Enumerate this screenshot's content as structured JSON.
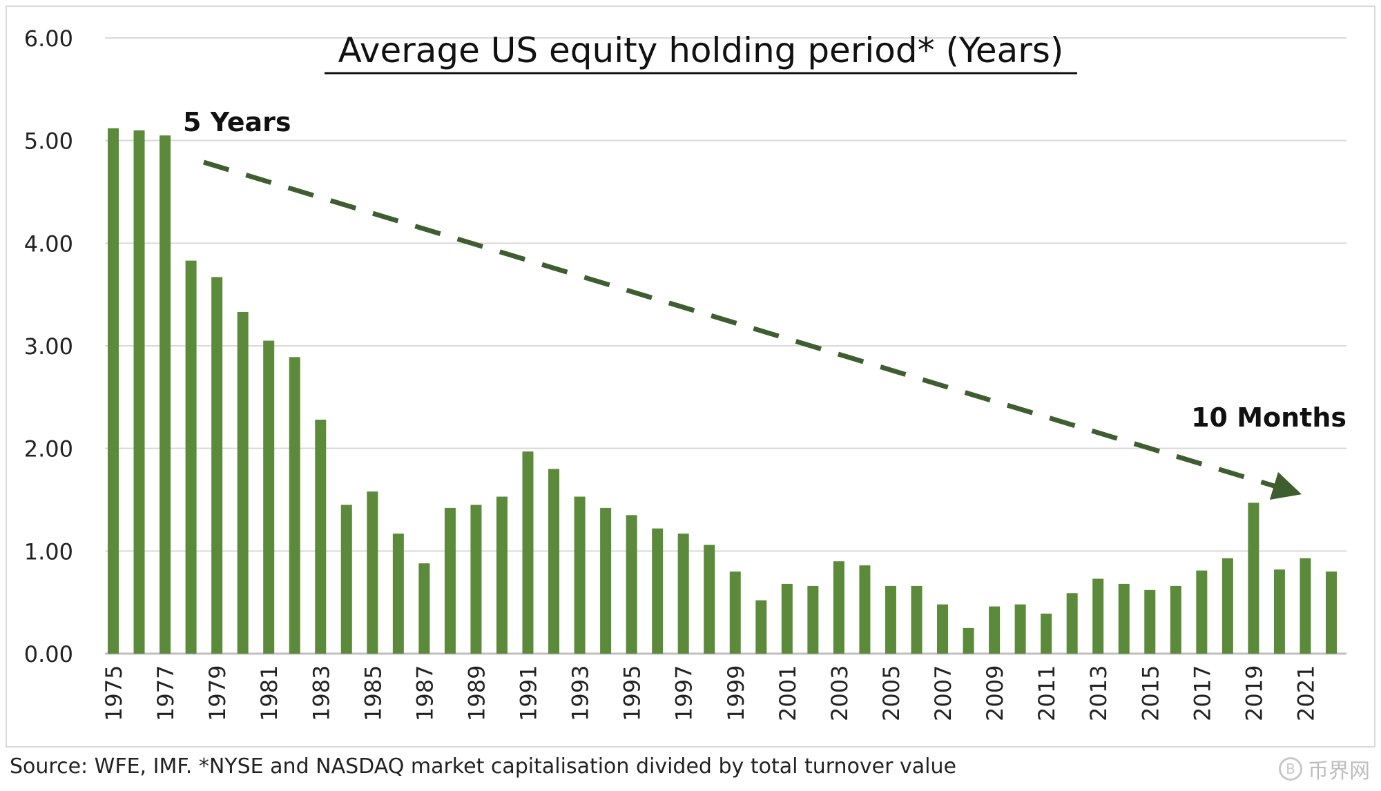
{
  "chart_data": {
    "type": "bar",
    "title": "Average US equity holding period* (Years)",
    "xlabel": "",
    "ylabel": "",
    "ylim": [
      0,
      6
    ],
    "y_ticks": [
      "0.00",
      "1.00",
      "2.00",
      "3.00",
      "4.00",
      "5.00",
      "6.00"
    ],
    "grid": true,
    "bar_color": "#5b8a3a",
    "trend_color": "#3e5e30",
    "categories": [
      "1975",
      "1976",
      "1977",
      "1978",
      "1979",
      "1980",
      "1981",
      "1982",
      "1983",
      "1984",
      "1985",
      "1986",
      "1987",
      "1988",
      "1989",
      "1990",
      "1991",
      "1992",
      "1993",
      "1994",
      "1995",
      "1996",
      "1997",
      "1998",
      "1999",
      "2000",
      "2001",
      "2002",
      "2003",
      "2004",
      "2005",
      "2006",
      "2007",
      "2008",
      "2009",
      "2010",
      "2011",
      "2012",
      "2013",
      "2014",
      "2015",
      "2016",
      "2017",
      "2018",
      "2019",
      "2020",
      "2021",
      "2022"
    ],
    "x_tick_labels": [
      "1975",
      "",
      "1977",
      "",
      "1979",
      "",
      "1981",
      "",
      "1983",
      "",
      "1985",
      "",
      "1987",
      "",
      "1989",
      "",
      "1991",
      "",
      "1993",
      "",
      "1995",
      "",
      "1997",
      "",
      "1999",
      "",
      "2001",
      "",
      "2003",
      "",
      "2005",
      "",
      "2007",
      "",
      "2009",
      "",
      "2011",
      "",
      "2013",
      "",
      "2015",
      "",
      "2017",
      "",
      "2019",
      "",
      "2021",
      ""
    ],
    "values": [
      5.12,
      5.1,
      5.05,
      3.83,
      3.67,
      3.33,
      3.05,
      2.89,
      2.28,
      1.45,
      1.58,
      1.17,
      0.88,
      1.42,
      1.45,
      1.53,
      1.97,
      1.8,
      1.53,
      1.42,
      1.35,
      1.22,
      1.17,
      1.06,
      0.8,
      0.52,
      0.68,
      0.66,
      0.9,
      0.86,
      0.66,
      0.66,
      0.48,
      0.25,
      0.46,
      0.48,
      0.39,
      0.59,
      0.73,
      0.68,
      0.62,
      0.66,
      0.81,
      0.93,
      1.47,
      0.82,
      0.93,
      0.8
    ],
    "annotations": [
      {
        "text": "5 Years"
      },
      {
        "text": "10 Months"
      }
    ],
    "source": "Source: WFE, IMF. *NYSE and NASDAQ market capitalisation divided by total turnover value"
  },
  "watermark": {
    "symbol": "B",
    "text": "币界网"
  }
}
